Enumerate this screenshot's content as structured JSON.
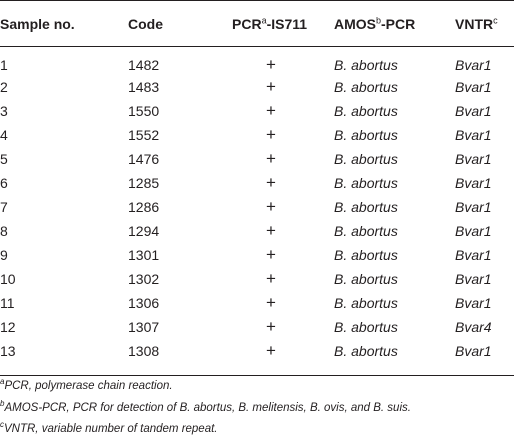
{
  "table": {
    "headers": {
      "sample": "Sample no.",
      "code": "Code",
      "pcr_main": "PCR",
      "pcr_sup": "a",
      "pcr_rest": "-IS711",
      "amos_main": "AMOS",
      "amos_sup": "b",
      "amos_rest": "-PCR",
      "vntr_main": "VNTR",
      "vntr_sup": "c"
    },
    "rows": [
      {
        "sample": "1",
        "code": "1482",
        "pcr": "+",
        "amos": "B. abortus",
        "vntr": "Bvar1"
      },
      {
        "sample": "2",
        "code": "1483",
        "pcr": "+",
        "amos": "B. abortus",
        "vntr": "Bvar1"
      },
      {
        "sample": "3",
        "code": "1550",
        "pcr": "+",
        "amos": "B. abortus",
        "vntr": "Bvar1"
      },
      {
        "sample": "4",
        "code": "1552",
        "pcr": "+",
        "amos": "B. abortus",
        "vntr": "Bvar1"
      },
      {
        "sample": "5",
        "code": "1476",
        "pcr": "+",
        "amos": "B. abortus",
        "vntr": "Bvar1"
      },
      {
        "sample": "6",
        "code": "1285",
        "pcr": "+",
        "amos": "B. abortus",
        "vntr": "Bvar1"
      },
      {
        "sample": "7",
        "code": "1286",
        "pcr": "+",
        "amos": "B. abortus",
        "vntr": "Bvar1"
      },
      {
        "sample": "8",
        "code": "1294",
        "pcr": "+",
        "amos": "B. abortus",
        "vntr": "Bvar1"
      },
      {
        "sample": "9",
        "code": "1301",
        "pcr": "+",
        "amos": "B. abortus",
        "vntr": "Bvar1"
      },
      {
        "sample": "10",
        "code": "1302",
        "pcr": "+",
        "amos": "B. abortus",
        "vntr": "Bvar1"
      },
      {
        "sample": "11",
        "code": "1306",
        "pcr": "+",
        "amos": "B. abortus",
        "vntr": "Bvar1"
      },
      {
        "sample": "12",
        "code": "1307",
        "pcr": "+",
        "amos": "B. abortus",
        "vntr": "Bvar4"
      },
      {
        "sample": "13",
        "code": "1308",
        "pcr": "+",
        "amos": "B. abortus",
        "vntr": "Bvar1"
      }
    ]
  },
  "footnotes": [
    {
      "mark": "a",
      "text": "PCR, polymerase chain reaction."
    },
    {
      "mark": "b",
      "text": "AMOS-PCR, PCR for detection of B. abortus, B. melitensis, B. ovis, and B. suis."
    },
    {
      "mark": "c",
      "text": "VNTR, variable number of tandem repeat."
    }
  ]
}
